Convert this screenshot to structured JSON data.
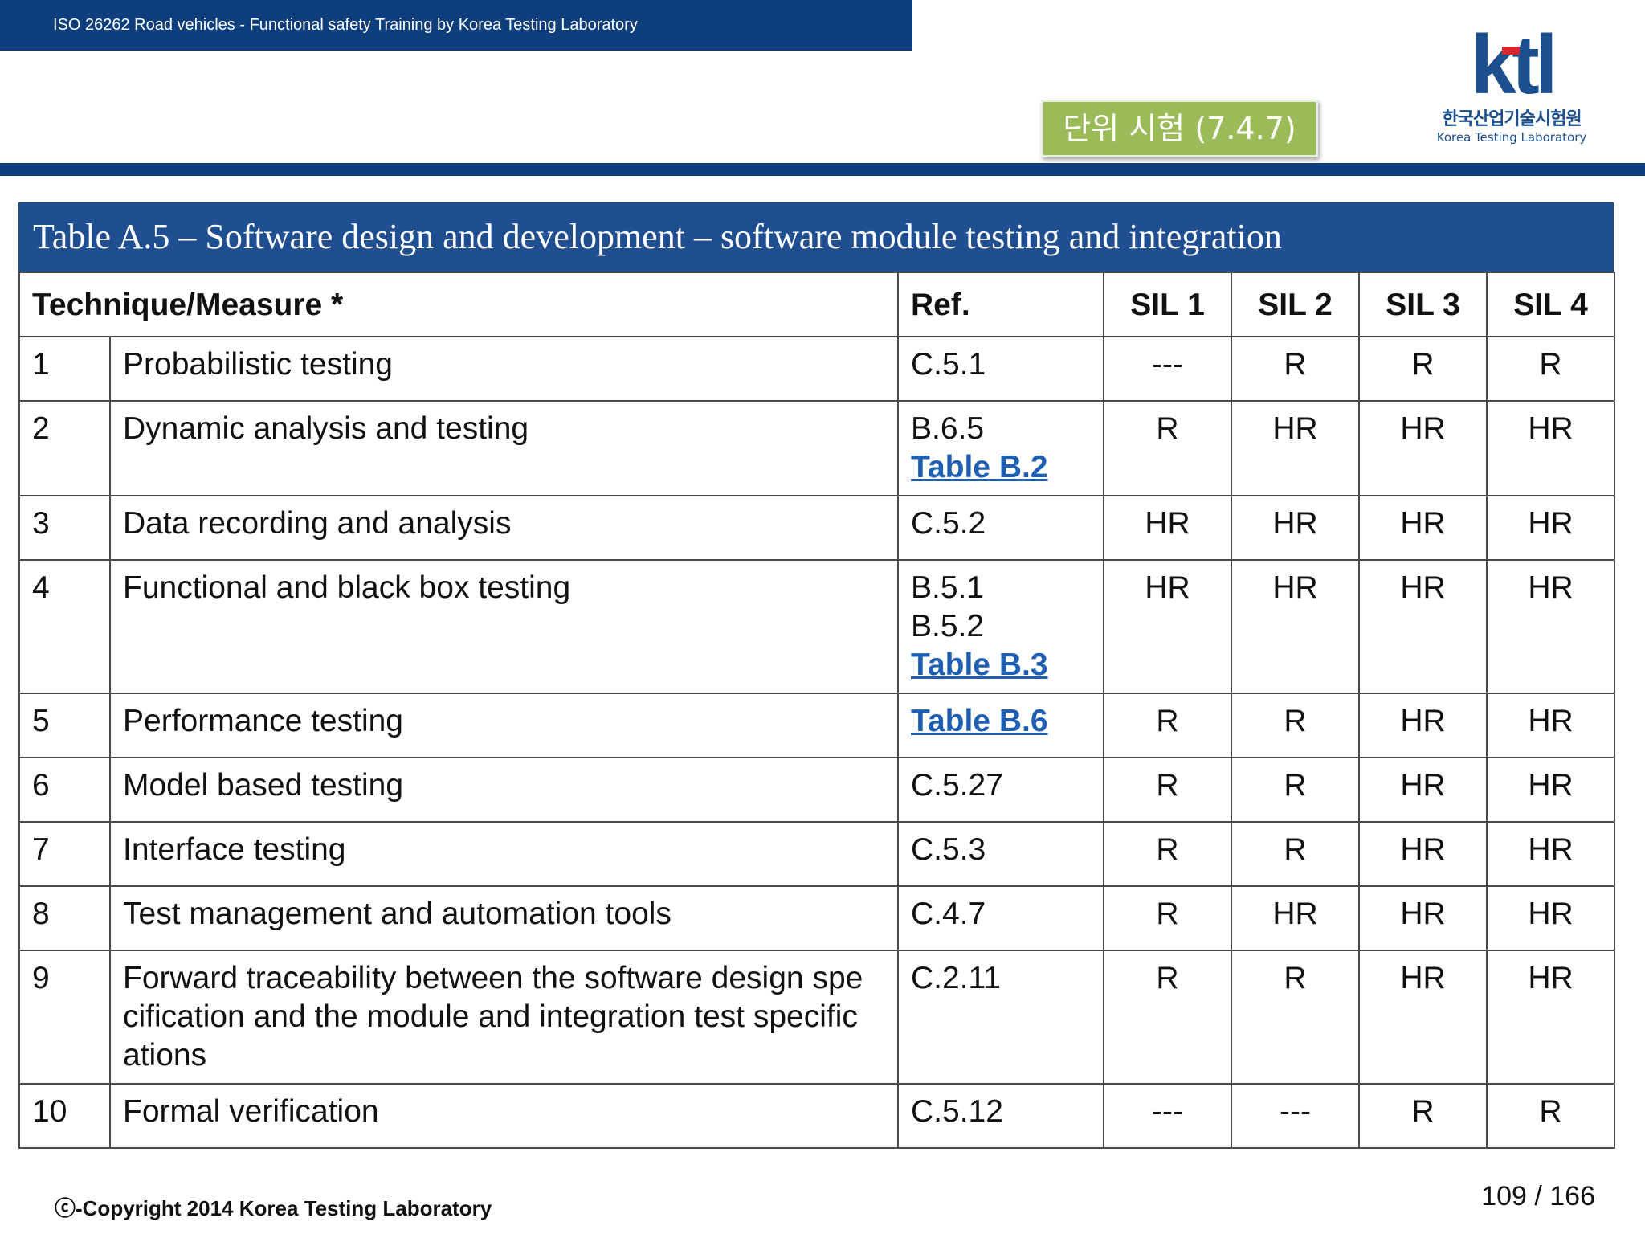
{
  "header": {
    "banner_text": "ISO 26262 Road vehicles - Functional safety Training by Korea Testing Laboratory",
    "section_title": "단위 시험 (7.4.7)",
    "logo_text": "ktl",
    "logo_korean": "한국산업기술시험원",
    "logo_english": "Korea Testing Laboratory",
    "brand_color": "#0e3f7c",
    "badge_color": "#9bbb59"
  },
  "table": {
    "caption": "Table A.5 – Software design and development – software module testing and integration",
    "columns": {
      "technique": "Technique/Measure *",
      "ref": "Ref.",
      "sil1": "SIL 1",
      "sil2": "SIL 2",
      "sil3": "SIL 3",
      "sil4": "SIL 4"
    },
    "rows": [
      {
        "num": "1",
        "technique": "Probabilistic testing",
        "ref": [
          "C.5.1"
        ],
        "ref_link": "",
        "sil1": "---",
        "sil2": "R",
        "sil3": "R",
        "sil4": "R"
      },
      {
        "num": "2",
        "technique": "Dynamic analysis and testing",
        "ref": [
          "B.6.5"
        ],
        "ref_link": "Table B.2",
        "sil1": "R",
        "sil2": "HR",
        "sil3": "HR",
        "sil4": "HR"
      },
      {
        "num": "3",
        "technique": "Data recording and analysis",
        "ref": [
          "C.5.2"
        ],
        "ref_link": "",
        "sil1": "HR",
        "sil2": "HR",
        "sil3": "HR",
        "sil4": "HR"
      },
      {
        "num": "4",
        "technique": "Functional and black box testing",
        "ref": [
          "B.5.1",
          "B.5.2"
        ],
        "ref_link": "Table B.3",
        "sil1": "HR",
        "sil2": "HR",
        "sil3": "HR",
        "sil4": "HR"
      },
      {
        "num": "5",
        "technique": "Performance testing",
        "ref": [],
        "ref_link": "Table B.6",
        "sil1": "R",
        "sil2": "R",
        "sil3": "HR",
        "sil4": "HR"
      },
      {
        "num": "6",
        "technique": "Model based testing",
        "ref": [
          "C.5.27"
        ],
        "ref_link": "",
        "sil1": "R",
        "sil2": "R",
        "sil3": "HR",
        "sil4": "HR"
      },
      {
        "num": "7",
        "technique": "Interface testing",
        "ref": [
          "C.5.3"
        ],
        "ref_link": "",
        "sil1": "R",
        "sil2": "R",
        "sil3": "HR",
        "sil4": "HR"
      },
      {
        "num": "8",
        "technique": "Test management and automation tools",
        "ref": [
          "C.4.7"
        ],
        "ref_link": "",
        "sil1": "R",
        "sil2": "HR",
        "sil3": "HR",
        "sil4": "HR"
      },
      {
        "num": "9",
        "technique_lines": [
          "Forward traceability between the software design spe",
          "cification and the module and integration test specific",
          "ations"
        ],
        "ref": [
          "C.2.11"
        ],
        "ref_link": "",
        "sil1": "R",
        "sil2": "R",
        "sil3": "HR",
        "sil4": "HR"
      },
      {
        "num": "10",
        "technique": "Formal verification",
        "ref": [
          "C.5.12"
        ],
        "ref_link": "",
        "sil1": "---",
        "sil2": "---",
        "sil3": "R",
        "sil4": "R"
      }
    ]
  },
  "footer": {
    "copyright": "ⓒ-Copyright 2014 Korea Testing Laboratory",
    "page": "109 / 166"
  }
}
